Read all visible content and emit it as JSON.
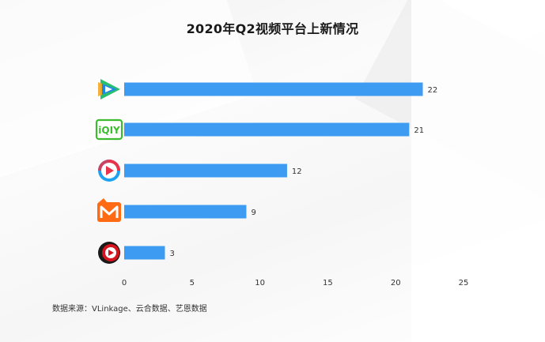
{
  "chart_data": {
    "type": "bar",
    "orientation": "horizontal",
    "title": "2020年Q2视频平台上新情况",
    "categories": [
      "腾讯视频",
      "爱奇艺",
      "优酷",
      "芒果TV",
      "搜狐视频"
    ],
    "category_icons": [
      "tencent-video-logo-icon",
      "iqiyi-logo-icon",
      "youku-logo-icon",
      "mango-tv-logo-icon",
      "sohu-video-logo-icon"
    ],
    "icon_text": {
      "iqiyi": "iQIY"
    },
    "values": [
      22,
      21,
      12,
      9,
      3
    ],
    "xlim": [
      0,
      25
    ],
    "xticks": [
      0,
      5,
      10,
      15,
      20,
      25
    ],
    "xlabel": "",
    "ylabel": "",
    "grid": false,
    "legend": "none",
    "bar_color": "#3d9bf2",
    "data_labels": true
  },
  "source_note": "数据来源：VLinkage、云合数据、艺恩数据",
  "colors": {
    "bar": "#3d9bf2",
    "title": "#1a1a1a",
    "label": "#333333",
    "tencent_green": "#28c06f",
    "tencent_blue": "#1e88e5",
    "tencent_orange": "#f5a623",
    "iqiyi_green": "#3dbb2e",
    "youku_red": "#e8334a",
    "youku_blue": "#1ea2f0",
    "mango_orange": "#ff6a13",
    "sohu_red": "#d7141e"
  }
}
